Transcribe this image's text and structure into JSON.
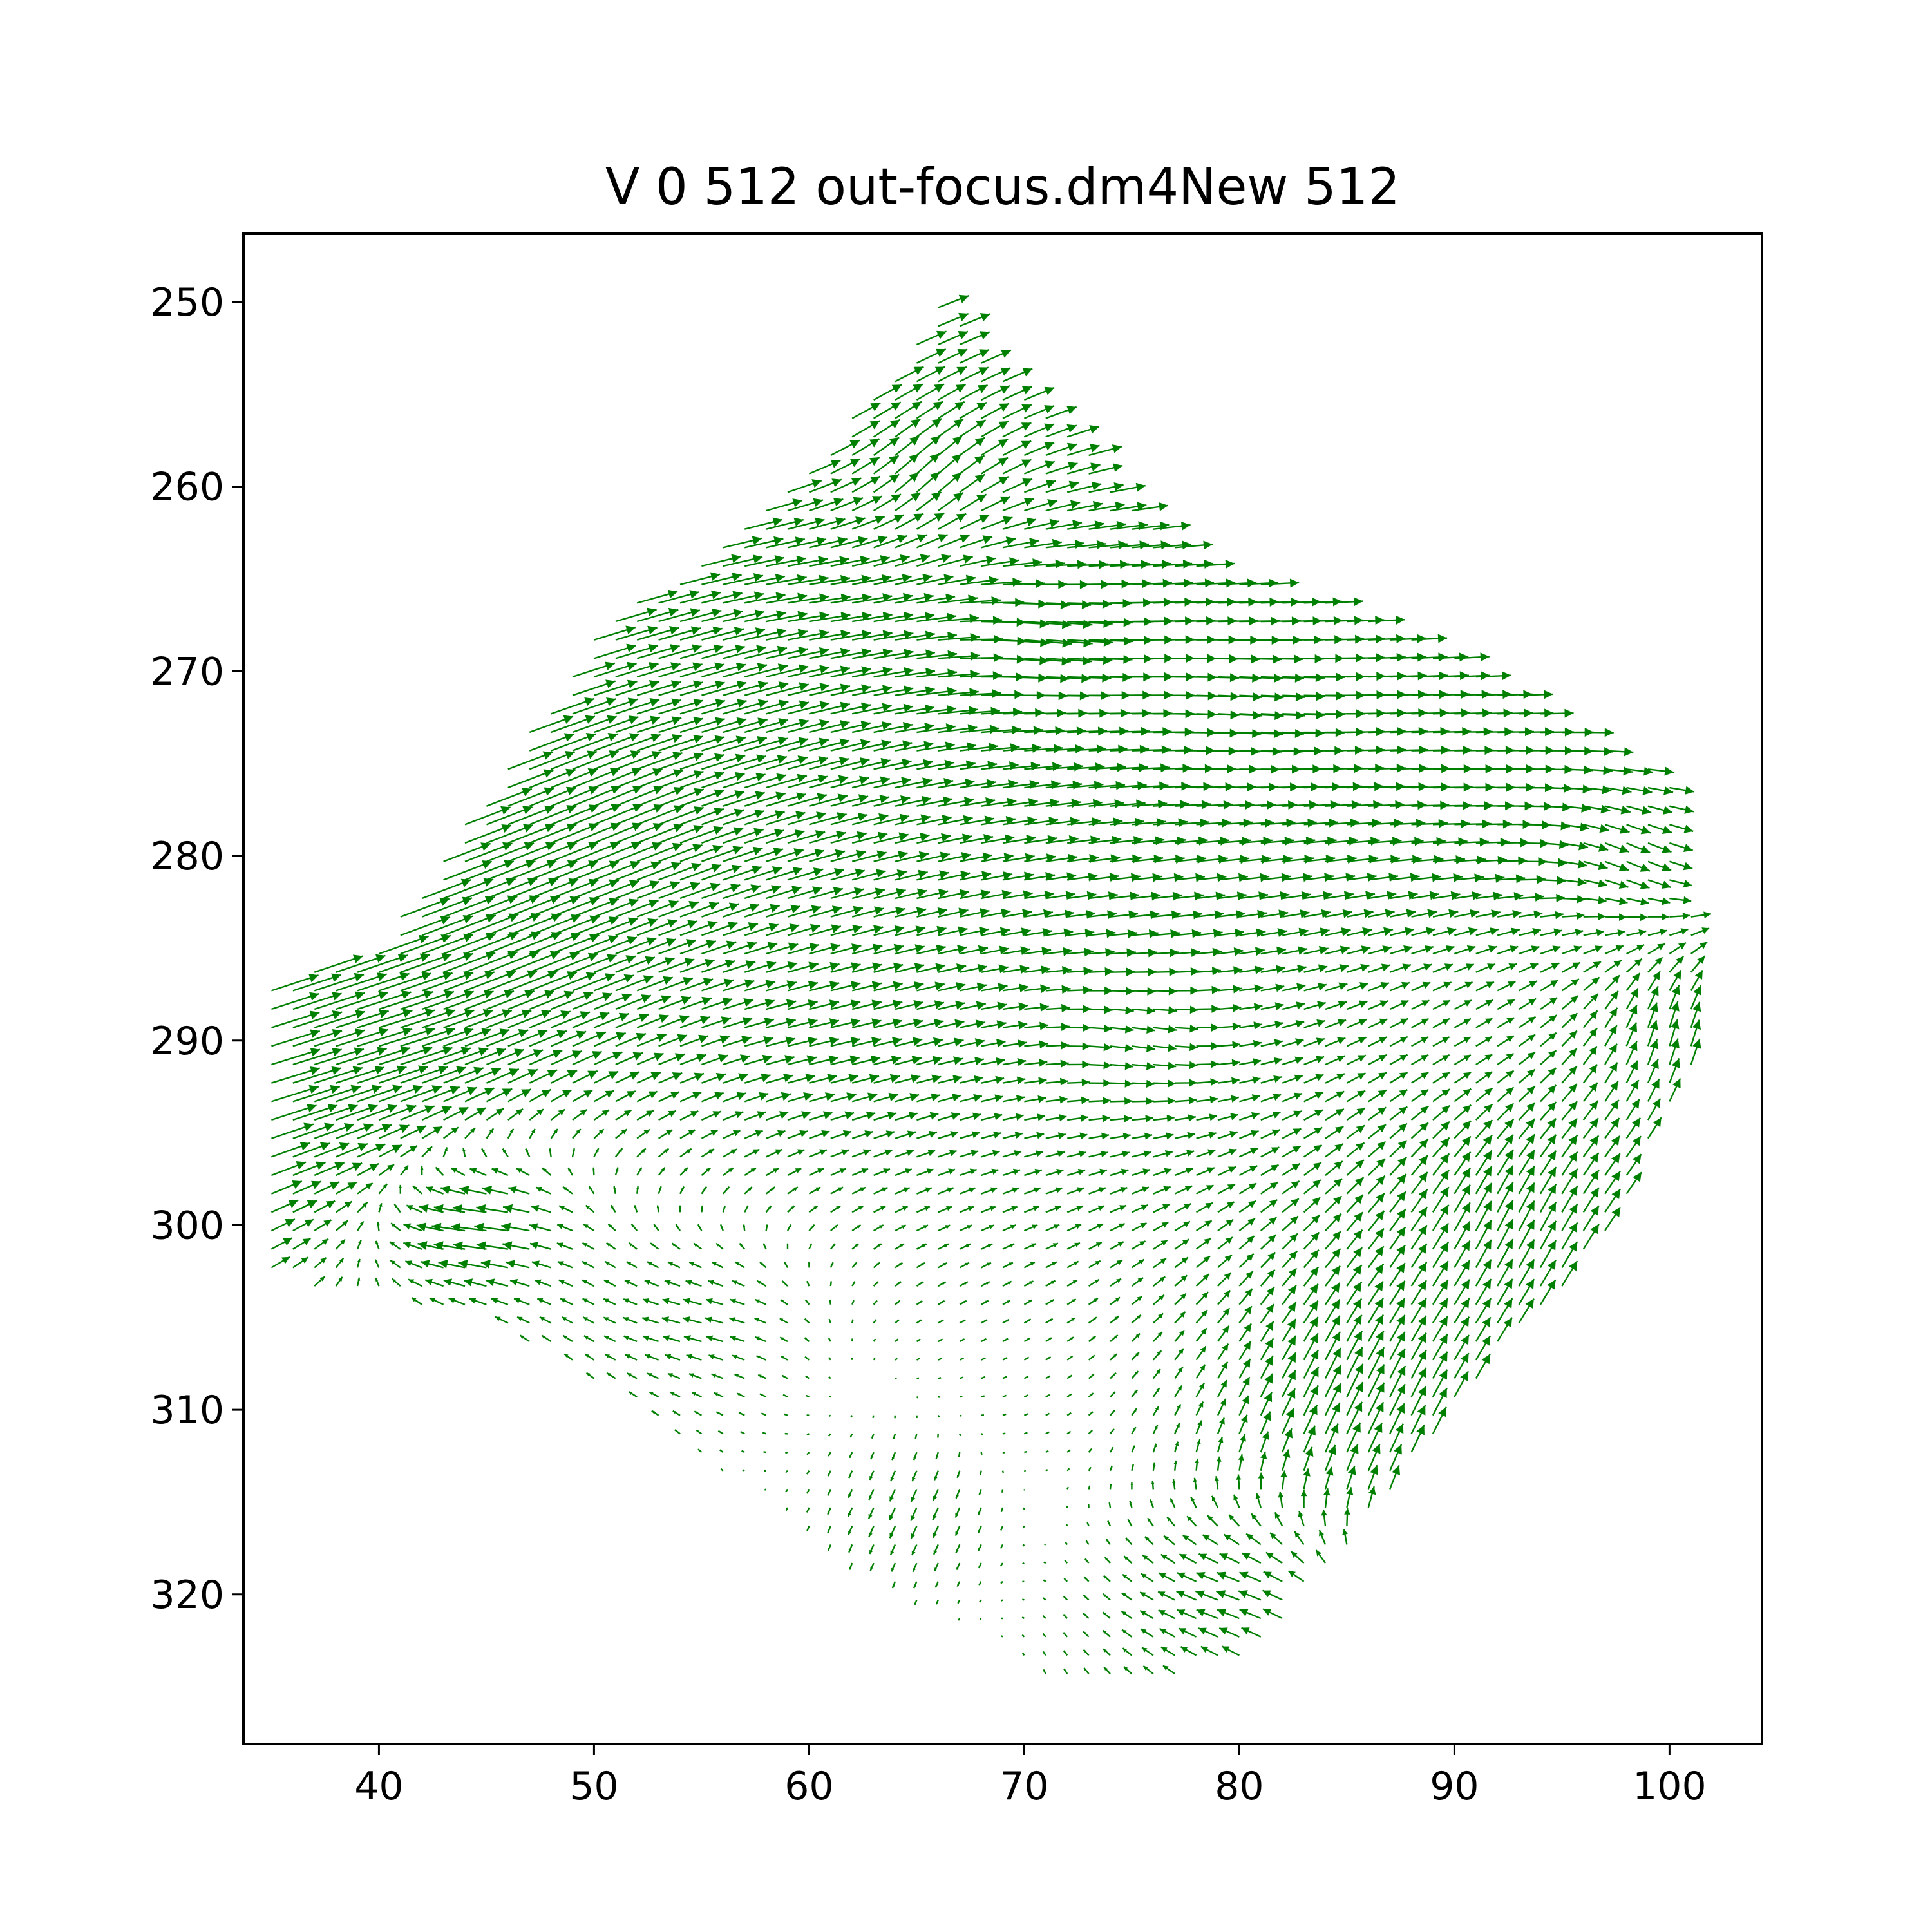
{
  "chart_data": {
    "type": "quiver",
    "title": "V 0 512 out-focus.dm4New 512",
    "xlabel": "",
    "ylabel": "",
    "xlim": [
      33.7,
      104.3
    ],
    "ylim": [
      328.1,
      246.3
    ],
    "y_inverted": true,
    "x_ticks": [
      40,
      50,
      60,
      70,
      80,
      90,
      100
    ],
    "y_ticks": [
      250,
      260,
      270,
      280,
      290,
      300,
      310,
      320
    ],
    "grid": false,
    "legend": "none",
    "arrow_color": "#008000",
    "grid_spacing": 1,
    "domain_polygon": [
      [
        35,
        287
      ],
      [
        40,
        285
      ],
      [
        44,
        278
      ],
      [
        50,
        268
      ],
      [
        57,
        262
      ],
      [
        63,
        255
      ],
      [
        66,
        250
      ],
      [
        72,
        257
      ],
      [
        78,
        264
      ],
      [
        86,
        267
      ],
      [
        93,
        271
      ],
      [
        100,
        276
      ],
      [
        102,
        289
      ],
      [
        97,
        301
      ],
      [
        92,
        307
      ],
      [
        86,
        316
      ],
      [
        80,
        324
      ],
      [
        72,
        325
      ],
      [
        64,
        320
      ],
      [
        58,
        315
      ],
      [
        52,
        310
      ],
      [
        45,
        305
      ],
      [
        35,
        303
      ]
    ],
    "flow_description": "dense quiver field; rightward shear across upper band, strong divergence at left edge, weak arrows in stagnation zone near x 66-78, y 303-316, clockwise swirl near x 96-101, y 284-296",
    "samples": [
      {
        "x": 35,
        "y": 292,
        "u": 2.6,
        "v": -0.9
      },
      {
        "x": 40,
        "y": 290,
        "u": 3.2,
        "v": -1.1
      },
      {
        "x": 45,
        "y": 285,
        "u": 3.0,
        "v": -1.4
      },
      {
        "x": 50,
        "y": 278,
        "u": 2.6,
        "v": -1.3
      },
      {
        "x": 55,
        "y": 272,
        "u": 2.4,
        "v": -0.8
      },
      {
        "x": 60,
        "y": 266,
        "u": 2.2,
        "v": -0.3
      },
      {
        "x": 65,
        "y": 260,
        "u": 1.0,
        "v": -1.4
      },
      {
        "x": 70,
        "y": 268,
        "u": 2.6,
        "v": 0.4
      },
      {
        "x": 80,
        "y": 272,
        "u": 2.4,
        "v": 0.2
      },
      {
        "x": 90,
        "y": 276,
        "u": 2.2,
        "v": 0.0
      },
      {
        "x": 98,
        "y": 280,
        "u": 1.2,
        "v": 0.8
      },
      {
        "x": 100,
        "y": 290,
        "u": 0.3,
        "v": -1.8
      },
      {
        "x": 92,
        "y": 300,
        "u": 0.8,
        "v": -2.0
      },
      {
        "x": 85,
        "y": 310,
        "u": 0.9,
        "v": -2.2
      },
      {
        "x": 80,
        "y": 320,
        "u": -1.4,
        "v": -0.5
      },
      {
        "x": 70,
        "y": 310,
        "u": 0.2,
        "v": -0.1
      },
      {
        "x": 65,
        "y": 315,
        "u": -0.4,
        "v": 1.0
      },
      {
        "x": 55,
        "y": 305,
        "u": -1.2,
        "v": -0.3
      },
      {
        "x": 45,
        "y": 300,
        "u": -2.4,
        "v": -0.2
      },
      {
        "x": 60,
        "y": 290,
        "u": 1.6,
        "v": -0.4
      },
      {
        "x": 75,
        "y": 290,
        "u": 1.2,
        "v": 0.3
      },
      {
        "x": 90,
        "y": 290,
        "u": 0.8,
        "v": -0.5
      }
    ]
  }
}
